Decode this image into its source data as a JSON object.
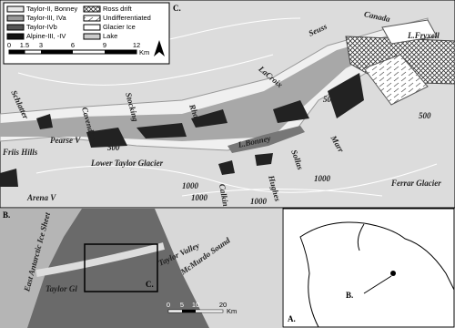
{
  "map": {
    "panel_c": {
      "label": "C.",
      "legend": [
        "Taylor-II, Bonney",
        "Taylor-III, IVa",
        "Taylor-IVb",
        "Alpine-III, -IV",
        "Ross drift",
        "Undifferentiated",
        "Glacier Ice",
        "Lake"
      ],
      "scale": {
        "ticks": [
          "0",
          "1.5",
          "3",
          "6",
          "9",
          "12"
        ],
        "unit": "Km"
      },
      "labels": [
        "Canada",
        "L.Fryxell",
        "Seuss",
        "LaCroix",
        "Schlatter",
        "Cavendish",
        "Stocking",
        "Rhone",
        "Pearse V",
        "L.Bonney",
        "Marr",
        "Sollas",
        "Hughes",
        "Calkin",
        "Lower Taylor Glacier",
        "Friis Hills",
        "Arena V",
        "Ferrar Glacier"
      ],
      "contours": [
        "500",
        "500",
        "1000",
        "1000",
        "1000",
        "1000",
        "500"
      ]
    },
    "panel_b": {
      "label": "B.",
      "labels": [
        "East Antarctic Ice Sheet",
        "Taylor Gl",
        "Taylor Valley",
        "McMurdo Sound"
      ],
      "inset_label": "C.",
      "scale": {
        "ticks": [
          "0",
          "5",
          "10",
          "20"
        ],
        "unit": "Km"
      }
    },
    "panel_a": {
      "label": "A.",
      "pointer_label": "B."
    }
  }
}
